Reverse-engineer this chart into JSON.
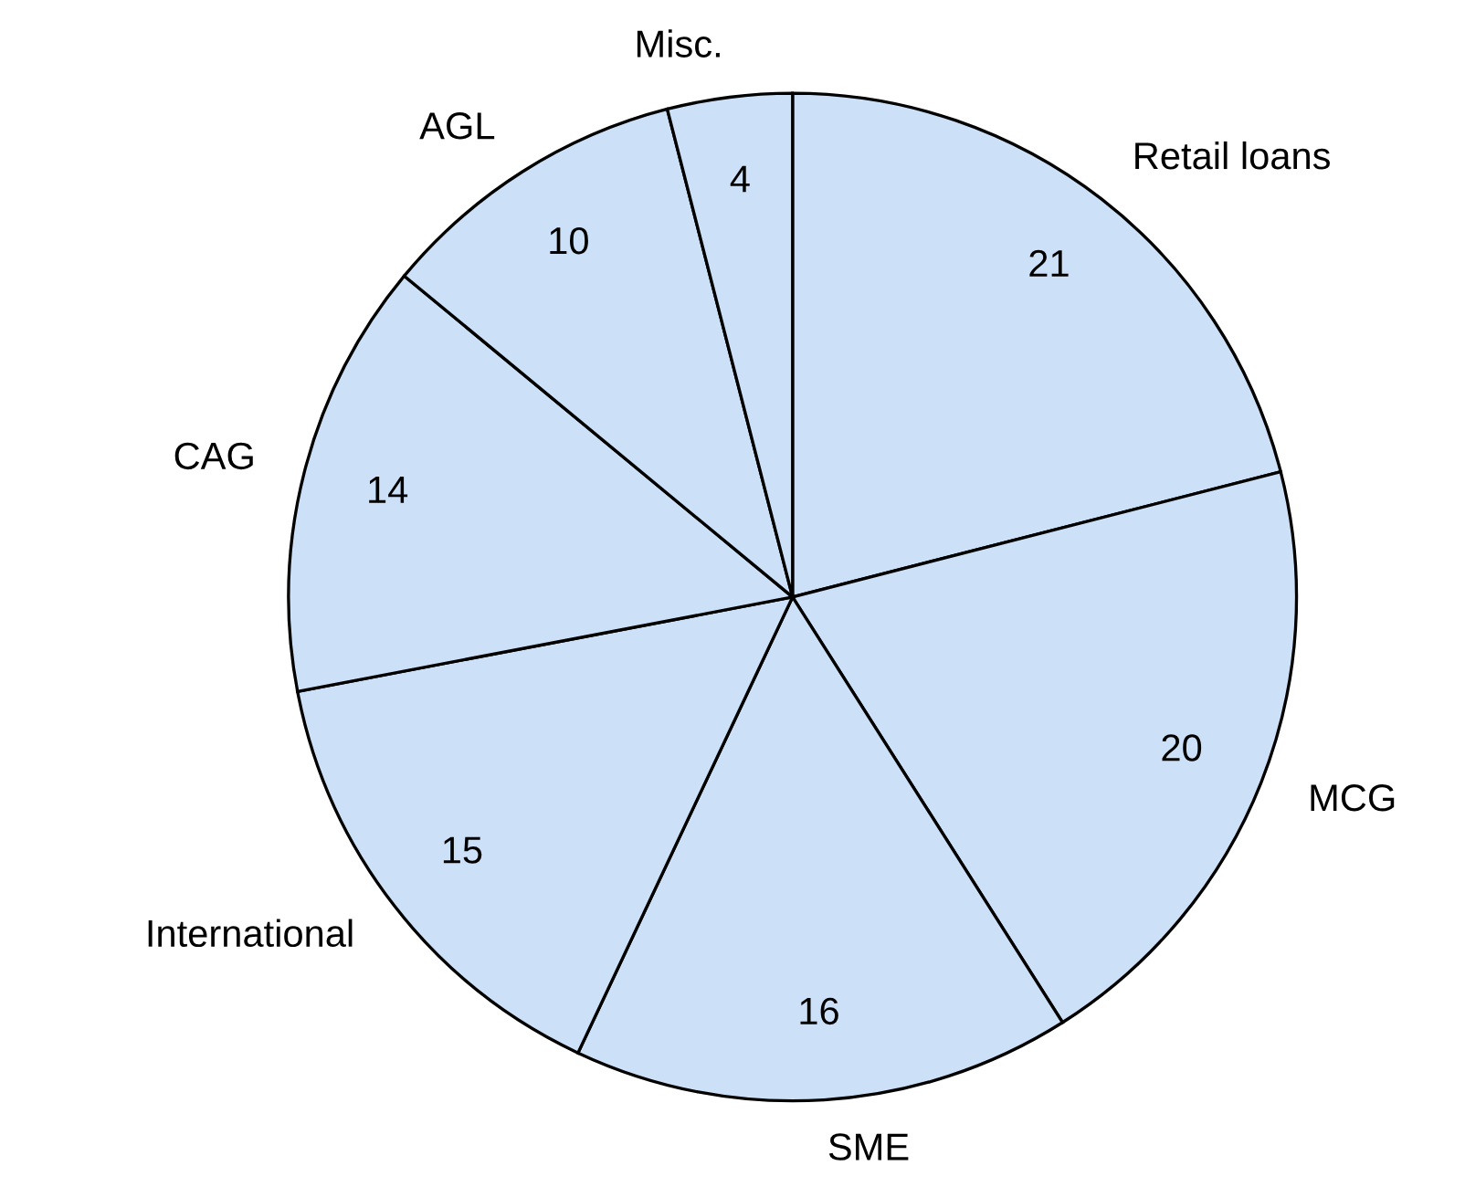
{
  "chart_data": {
    "type": "pie",
    "categories": [
      "Retail loans",
      "MCG",
      "SME",
      "International",
      "CAG",
      "AGL",
      "Misc."
    ],
    "values": [
      21,
      20,
      16,
      15,
      14,
      10,
      4
    ],
    "colors": [
      "#cce1f8",
      "#cce1f8",
      "#cce1f8",
      "#cce1f8",
      "#cce1f8",
      "#cce1f8",
      "#cce1f8"
    ],
    "data_labels": true
  }
}
